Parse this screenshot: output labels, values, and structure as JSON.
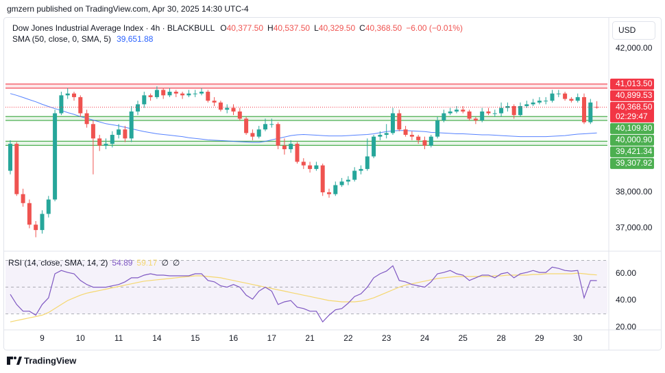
{
  "header": {
    "published": "gmzern published on TradingView.com, Apr 30, 2025 14:30 UTC-4",
    "currency": "USD",
    "brand": "TradingView"
  },
  "chart_data": [
    {
      "type": "candlestick",
      "title": "Dow Jones Industrial Average Index · 4h · BLACKBULL",
      "ohlc_legend": [
        {
          "key": "O",
          "value": "40,377.50"
        },
        {
          "key": "H",
          "value": "40,537.50"
        },
        {
          "key": "L",
          "value": "40,329.50"
        },
        {
          "key": "C",
          "value": "40,368.50"
        }
      ],
      "change": "−6.00 (−0.01%)",
      "categories": [
        null,
        null,
        null,
        null,
        null,
        "9",
        null,
        null,
        null,
        null,
        null,
        "10",
        null,
        null,
        null,
        null,
        null,
        "11",
        null,
        null,
        null,
        null,
        null,
        "14",
        null,
        null,
        null,
        null,
        null,
        "15",
        null,
        null,
        null,
        null,
        null,
        "16",
        null,
        null,
        null,
        null,
        null,
        "17",
        null,
        null,
        null,
        null,
        null,
        "21",
        null,
        null,
        null,
        null,
        null,
        "22",
        null,
        null,
        null,
        null,
        null,
        "23",
        null,
        null,
        null,
        null,
        null,
        "24",
        null,
        null,
        null,
        null,
        null,
        "25",
        null,
        null,
        null,
        null,
        null,
        "28",
        null,
        null,
        null,
        null,
        null,
        "29",
        null,
        null,
        null,
        null,
        null,
        "30",
        null,
        null,
        null
      ],
      "ohlc": [
        [
          38600,
          39450,
          38500,
          39350
        ],
        [
          39350,
          39400,
          37900,
          37950
        ],
        [
          37950,
          38100,
          37600,
          37700
        ],
        [
          37700,
          37800,
          37000,
          37100
        ],
        [
          37100,
          37200,
          36750,
          36950
        ],
        [
          36950,
          37500,
          36850,
          37400
        ],
        [
          37400,
          37900,
          37300,
          37800
        ],
        [
          37800,
          40300,
          37750,
          40200
        ],
        [
          40200,
          40800,
          40150,
          40700
        ],
        [
          40700,
          40900,
          40600,
          40750
        ],
        [
          40750,
          40800,
          40550,
          40650
        ],
        [
          40650,
          40700,
          40100,
          40200
        ],
        [
          40200,
          40300,
          39800,
          39900
        ],
        [
          39900,
          40000,
          38500,
          39500
        ],
        [
          39500,
          39600,
          39150,
          39300
        ],
        [
          39300,
          39500,
          39200,
          39350
        ],
        [
          39350,
          39700,
          39250,
          39600
        ],
        [
          39600,
          39900,
          39500,
          39750
        ],
        [
          39750,
          39850,
          39400,
          39500
        ],
        [
          39500,
          40400,
          39400,
          40250
        ],
        [
          40250,
          40550,
          40150,
          40450
        ],
        [
          40450,
          40800,
          40350,
          40700
        ],
        [
          40700,
          40750,
          40550,
          40650
        ],
        [
          40650,
          40950,
          40600,
          40850
        ],
        [
          40850,
          40900,
          40600,
          40700
        ],
        [
          40700,
          40900,
          40650,
          40800
        ],
        [
          40800,
          40850,
          40650,
          40750
        ],
        [
          40750,
          40800,
          40600,
          40700
        ],
        [
          40700,
          40850,
          40650,
          40750
        ],
        [
          40750,
          40850,
          40650,
          40750
        ],
        [
          40750,
          40900,
          40700,
          40800
        ],
        [
          40800,
          40850,
          40500,
          40550
        ],
        [
          40550,
          40650,
          40400,
          40500
        ],
        [
          40500,
          40550,
          40250,
          40300
        ],
        [
          40300,
          40450,
          40200,
          40350
        ],
        [
          40350,
          40450,
          40150,
          40250
        ],
        [
          40250,
          40350,
          40000,
          40050
        ],
        [
          40050,
          40100,
          39600,
          39650
        ],
        [
          39650,
          39750,
          39450,
          39550
        ],
        [
          39550,
          39850,
          39500,
          39750
        ],
        [
          39750,
          40050,
          39700,
          39900
        ],
        [
          39900,
          40050,
          39800,
          39900
        ],
        [
          39900,
          39950,
          39200,
          39300
        ],
        [
          39300,
          39500,
          39050,
          39200
        ],
        [
          39200,
          39450,
          39100,
          39350
        ],
        [
          39350,
          39400,
          38800,
          38850
        ],
        [
          38850,
          38950,
          38650,
          38750
        ],
        [
          38750,
          38850,
          38550,
          38650
        ],
        [
          38650,
          38850,
          38600,
          38750
        ],
        [
          38750,
          38800,
          37900,
          38000
        ],
        [
          38000,
          38100,
          37850,
          37950
        ],
        [
          37950,
          38300,
          37900,
          38200
        ],
        [
          38200,
          38400,
          38150,
          38300
        ],
        [
          38300,
          38450,
          38200,
          38350
        ],
        [
          38350,
          38700,
          38300,
          38600
        ],
        [
          38600,
          38750,
          38500,
          38650
        ],
        [
          38650,
          39500,
          38600,
          39000
        ],
        [
          39000,
          39600,
          38950,
          39550
        ],
        [
          39550,
          39700,
          39450,
          39600
        ],
        [
          39600,
          39900,
          39500,
          39650
        ],
        [
          39650,
          40350,
          39600,
          40200
        ],
        [
          40200,
          40300,
          39700,
          39750
        ],
        [
          39750,
          39850,
          39550,
          39600
        ],
        [
          39600,
          39700,
          39450,
          39550
        ],
        [
          39550,
          39600,
          39350,
          39450
        ],
        [
          39450,
          39550,
          39200,
          39300
        ],
        [
          39300,
          39600,
          39250,
          39550
        ],
        [
          39550,
          40100,
          39500,
          40000
        ],
        [
          40000,
          40300,
          39950,
          40200
        ],
        [
          40200,
          40350,
          40150,
          40250
        ],
        [
          40250,
          40400,
          40200,
          40300
        ],
        [
          40300,
          40400,
          40200,
          40250
        ],
        [
          40250,
          40300,
          40000,
          40050
        ],
        [
          40050,
          40100,
          39900,
          40000
        ],
        [
          40000,
          40350,
          39950,
          40250
        ],
        [
          40250,
          40350,
          40150,
          40200
        ],
        [
          40200,
          40300,
          40100,
          40200
        ],
        [
          40200,
          40500,
          40100,
          40350
        ],
        [
          40350,
          40500,
          40250,
          40400
        ],
        [
          40400,
          40450,
          40050,
          40150
        ],
        [
          40150,
          40500,
          40100,
          40400
        ],
        [
          40400,
          40550,
          40350,
          40450
        ],
        [
          40450,
          40600,
          40400,
          40500
        ],
        [
          40500,
          40650,
          40450,
          40550
        ],
        [
          40550,
          40650,
          40450,
          40550
        ],
        [
          40550,
          40850,
          40500,
          40750
        ],
        [
          40750,
          40850,
          40650,
          40750
        ],
        [
          40750,
          40800,
          40550,
          40600
        ],
        [
          40600,
          40650,
          40500,
          40550
        ],
        [
          40550,
          40750,
          40500,
          40650
        ],
        [
          40650,
          40750,
          39900,
          39950
        ],
        [
          39950,
          40600,
          39900,
          40500
        ],
        [
          40377.5,
          40537.5,
          40329.5,
          40368.5
        ]
      ],
      "up_color": "#26a69a",
      "down_color": "#ef5350",
      "sma": {
        "name": "SMA (50, close, 0, SMA, 5)",
        "value_label": "39,651.88",
        "color": "#2962ff",
        "values": [
          40750,
          40700,
          40640,
          40580,
          40520,
          40450,
          40390,
          40330,
          40280,
          40220,
          40170,
          40110,
          40060,
          40010,
          39960,
          39910,
          39880,
          39850,
          39810,
          39770,
          39730,
          39690,
          39660,
          39630,
          39610,
          39590,
          39570,
          39550,
          39520,
          39500,
          39480,
          39460,
          39450,
          39440,
          39430,
          39420,
          39410,
          39400,
          39390,
          39390,
          39420,
          39460,
          39500,
          39540,
          39580,
          39600,
          39610,
          39600,
          39590,
          39580,
          39570,
          39570,
          39570,
          39580,
          39590,
          39600,
          39610,
          39630,
          39660,
          39690,
          39710,
          39720,
          39720,
          39710,
          39700,
          39690,
          39670,
          39660,
          39650,
          39640,
          39630,
          39630,
          39620,
          39610,
          39600,
          39600,
          39590,
          39580,
          39570,
          39560,
          39550,
          39550,
          39550,
          39550,
          39550,
          39560,
          39570,
          39580,
          39600,
          39620,
          39630,
          39640,
          39651.88
        ]
      },
      "last_price": {
        "value": 40368.5,
        "label": "40,368.50",
        "countdown": "02:29:47",
        "color": "#f23645"
      },
      "levels": [
        {
          "value": 41013.5,
          "label": "41,013.50",
          "color": "#f23645"
        },
        {
          "value": 40899.53,
          "label": "40,899.53",
          "color": "#f23645"
        },
        {
          "value": 40109.8,
          "label": "40,109.80",
          "color": "#4caf50"
        },
        {
          "value": 40000.9,
          "label": "40,000.90",
          "color": "#4caf50"
        },
        {
          "value": 39421.34,
          "label": "39,421.34",
          "color": "#4caf50"
        },
        {
          "value": 39307.92,
          "label": "39,307.92",
          "color": "#4caf50"
        }
      ],
      "ylim": [
        36400,
        42820
      ],
      "yticks": [
        {
          "value": 42000,
          "label": "42,000.00"
        },
        {
          "value": 38000,
          "label": "38,000.00"
        },
        {
          "value": 37000,
          "label": "37,000.00"
        }
      ]
    },
    {
      "type": "line",
      "title": "RSI (14, close, SMA, 14, 2)",
      "series": [
        {
          "color": "#7e57c2",
          "value_label": "54.89",
          "values": [
            44.6,
            37,
            32,
            32,
            29,
            37,
            42,
            60,
            62.5,
            61,
            60,
            55,
            52,
            50,
            50,
            50,
            51,
            52,
            54,
            57,
            57,
            59,
            60,
            59,
            59,
            58.5,
            58.5,
            58.5,
            58.5,
            60,
            60,
            55,
            54,
            51,
            50,
            52,
            50,
            44,
            41,
            47,
            50,
            47,
            37,
            39,
            40,
            35,
            34,
            32,
            32,
            24,
            29,
            33,
            34,
            38,
            43,
            45,
            50,
            57,
            60,
            62,
            66,
            55,
            54,
            52,
            51,
            50,
            54,
            60,
            61,
            62.5,
            60,
            59,
            55,
            57,
            59,
            59,
            57,
            60,
            61,
            57,
            60,
            61,
            62.5,
            61,
            61,
            65,
            64,
            62.5,
            62,
            62.5,
            42,
            55,
            54.89
          ]
        },
        {
          "color": "#f5d76e",
          "value_label": "59.17",
          "values": [
            24,
            25,
            26,
            27,
            28,
            29,
            31,
            34,
            37,
            40,
            42,
            44,
            45.5,
            46.5,
            47.5,
            48.5,
            49.5,
            50.5,
            51.5,
            52.5,
            53.5,
            54.5,
            55,
            55.5,
            56,
            56.5,
            57,
            57.5,
            58,
            58.5,
            58.5,
            58,
            57.5,
            57,
            56,
            55,
            54,
            53,
            52,
            51,
            50,
            49,
            48,
            47,
            46,
            45,
            44,
            43,
            42,
            41,
            40,
            39.5,
            39,
            39,
            39,
            39.5,
            40.5,
            42,
            44,
            46,
            48,
            50,
            51.5,
            52.5,
            53.5,
            54.5,
            55.5,
            56.5,
            57,
            57.5,
            58,
            58,
            58,
            58,
            58,
            58,
            58.5,
            58.5,
            59,
            59,
            59,
            59,
            59.5,
            59.5,
            60,
            60,
            60,
            60,
            60,
            60.5,
            60,
            59.5,
            59.17
          ]
        }
      ],
      "extra_labels": [
        "∅",
        "∅"
      ],
      "band": [
        30,
        70
      ],
      "midline": 50,
      "ylim": [
        18,
        75.4
      ],
      "yticks": [
        {
          "value": 60,
          "label": "60.00"
        },
        {
          "value": 40,
          "label": "40.00"
        },
        {
          "value": 20,
          "label": "20.00"
        }
      ]
    }
  ]
}
